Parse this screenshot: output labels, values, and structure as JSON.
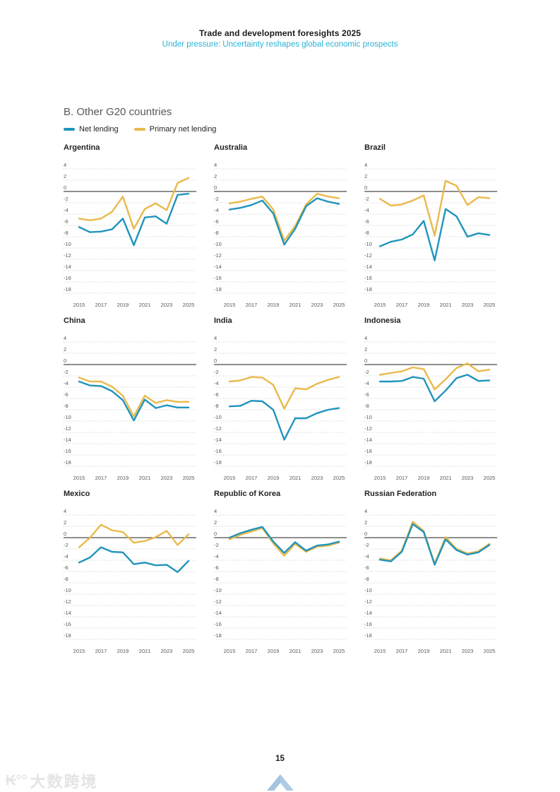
{
  "header": {
    "title": "Trade and development foresights 2025",
    "subtitle": "Under pressure: Uncertainty reshapes global economic prospects"
  },
  "section": {
    "title": "B. Other G20 countries"
  },
  "legend": {
    "items": [
      {
        "label": "Net lending",
        "color": "#2094bc"
      },
      {
        "label": "Primary net lending",
        "color": "#e9b94b"
      }
    ]
  },
  "colors": {
    "net_lending": "#2094bc",
    "primary_net_lending": "#e9b94b",
    "subtitle_cyan": "#2ab3d6",
    "gridline": "#c9c9c9",
    "zero_line": "#4a4a4a",
    "tick_label": "#58595b",
    "chevron_blue": "#aecbe4"
  },
  "chart_data": [
    {
      "type": "line",
      "title": "Argentina",
      "x": [
        2015,
        2016,
        2017,
        2018,
        2019,
        2020,
        2021,
        2022,
        2023,
        2024,
        2025
      ],
      "xticks": [
        2015,
        2017,
        2019,
        2021,
        2023,
        2025
      ],
      "yticks": [
        4,
        2,
        0,
        -2,
        -4,
        -6,
        -8,
        -10,
        -12,
        -14,
        -16,
        -18
      ],
      "ylim": [
        -18,
        4
      ],
      "grid": true,
      "series": [
        {
          "name": "Net lending",
          "color": "#2094bc",
          "values": [
            -6.3,
            -7.2,
            -7.1,
            -6.7,
            -4.8,
            -9.5,
            -4.6,
            -4.4,
            -5.7,
            -0.6,
            -0.4
          ]
        },
        {
          "name": "Primary net lending",
          "color": "#e9b94b",
          "values": [
            -4.8,
            -5.1,
            -4.8,
            -3.6,
            -0.9,
            -6.6,
            -3.1,
            -2.1,
            -3.3,
            1.5,
            2.4
          ]
        }
      ]
    },
    {
      "type": "line",
      "title": "Australia",
      "x": [
        2015,
        2016,
        2017,
        2018,
        2019,
        2020,
        2021,
        2022,
        2023,
        2024,
        2025
      ],
      "xticks": [
        2015,
        2017,
        2019,
        2021,
        2023,
        2025
      ],
      "yticks": [
        4,
        2,
        0,
        -2,
        -4,
        -6,
        -8,
        -10,
        -12,
        -14,
        -16,
        -18
      ],
      "ylim": [
        -18,
        4
      ],
      "grid": true,
      "series": [
        {
          "name": "Net lending",
          "color": "#2094bc",
          "values": [
            -3.2,
            -2.9,
            -2.4,
            -1.6,
            -3.9,
            -9.4,
            -6.6,
            -2.6,
            -1.2,
            -1.8,
            -2.2
          ]
        },
        {
          "name": "Primary net lending",
          "color": "#e9b94b",
          "values": [
            -2.1,
            -1.8,
            -1.3,
            -0.9,
            -3.2,
            -8.7,
            -6.1,
            -2.3,
            -0.4,
            -0.9,
            -1.2
          ]
        }
      ]
    },
    {
      "type": "line",
      "title": "Brazil",
      "x": [
        2015,
        2016,
        2017,
        2018,
        2019,
        2020,
        2021,
        2022,
        2023,
        2024,
        2025
      ],
      "xticks": [
        2015,
        2017,
        2019,
        2021,
        2023,
        2025
      ],
      "yticks": [
        4,
        2,
        0,
        -2,
        -4,
        -6,
        -8,
        -10,
        -12,
        -14,
        -16,
        -18
      ],
      "ylim": [
        -18,
        4
      ],
      "grid": true,
      "series": [
        {
          "name": "Net lending",
          "color": "#2094bc",
          "values": [
            -9.7,
            -8.9,
            -8.5,
            -7.6,
            -5.2,
            -12.2,
            -3.1,
            -4.4,
            -8.0,
            -7.4,
            -7.7
          ]
        },
        {
          "name": "Primary net lending",
          "color": "#e9b94b",
          "values": [
            -1.3,
            -2.5,
            -2.3,
            -1.6,
            -0.7,
            -7.8,
            1.9,
            1.0,
            -2.4,
            -1.0,
            -1.2
          ]
        }
      ]
    },
    {
      "type": "line",
      "title": "China",
      "x": [
        2015,
        2016,
        2017,
        2018,
        2019,
        2020,
        2021,
        2022,
        2023,
        2024,
        2025
      ],
      "xticks": [
        2015,
        2017,
        2019,
        2021,
        2023,
        2025
      ],
      "yticks": [
        4,
        2,
        0,
        -2,
        -4,
        -6,
        -8,
        -10,
        -12,
        -14,
        -16,
        -18
      ],
      "ylim": [
        -18,
        4
      ],
      "grid": true,
      "series": [
        {
          "name": "Net lending",
          "color": "#2094bc",
          "values": [
            -3.0,
            -3.7,
            -3.8,
            -4.7,
            -6.3,
            -9.9,
            -6.2,
            -7.7,
            -7.2,
            -7.6,
            -7.6
          ]
        },
        {
          "name": "Primary net lending",
          "color": "#e9b94b",
          "values": [
            -2.3,
            -3.0,
            -3.0,
            -3.9,
            -5.5,
            -9.2,
            -5.5,
            -6.8,
            -6.3,
            -6.6,
            -6.6
          ]
        }
      ]
    },
    {
      "type": "line",
      "title": "India",
      "x": [
        2015,
        2016,
        2017,
        2018,
        2019,
        2020,
        2021,
        2022,
        2023,
        2024,
        2025
      ],
      "xticks": [
        2015,
        2017,
        2019,
        2021,
        2023,
        2025
      ],
      "yticks": [
        4,
        2,
        0,
        -2,
        -4,
        -6,
        -8,
        -10,
        -12,
        -14,
        -16,
        -18
      ],
      "ylim": [
        -18,
        4
      ],
      "grid": true,
      "series": [
        {
          "name": "Net lending",
          "color": "#2094bc",
          "values": [
            -7.4,
            -7.3,
            -6.4,
            -6.5,
            -8.0,
            -13.3,
            -9.5,
            -9.5,
            -8.6,
            -8.0,
            -7.7
          ]
        },
        {
          "name": "Primary net lending",
          "color": "#e9b94b",
          "values": [
            -3.0,
            -2.8,
            -2.2,
            -2.3,
            -3.6,
            -7.8,
            -4.2,
            -4.4,
            -3.4,
            -2.7,
            -2.2
          ]
        }
      ]
    },
    {
      "type": "line",
      "title": "Indonesia",
      "x": [
        2015,
        2016,
        2017,
        2018,
        2019,
        2020,
        2021,
        2022,
        2023,
        2024,
        2025
      ],
      "xticks": [
        2015,
        2017,
        2019,
        2021,
        2023,
        2025
      ],
      "yticks": [
        4,
        2,
        0,
        -2,
        -4,
        -6,
        -8,
        -10,
        -12,
        -14,
        -16,
        -18
      ],
      "ylim": [
        -18,
        4
      ],
      "grid": true,
      "series": [
        {
          "name": "Net lending",
          "color": "#2094bc",
          "values": [
            -3.0,
            -3.0,
            -2.9,
            -2.2,
            -2.5,
            -6.5,
            -4.6,
            -2.4,
            -1.8,
            -2.9,
            -2.8
          ]
        },
        {
          "name": "Primary net lending",
          "color": "#e9b94b",
          "values": [
            -1.8,
            -1.5,
            -1.2,
            -0.5,
            -0.8,
            -4.4,
            -2.6,
            -0.6,
            0.2,
            -1.2,
            -0.9
          ]
        }
      ]
    },
    {
      "type": "line",
      "title": "Mexico",
      "x": [
        2015,
        2016,
        2017,
        2018,
        2019,
        2020,
        2021,
        2022,
        2023,
        2024,
        2025
      ],
      "xticks": [
        2015,
        2017,
        2019,
        2021,
        2023,
        2025
      ],
      "yticks": [
        4,
        2,
        0,
        -2,
        -4,
        -6,
        -8,
        -10,
        -12,
        -14,
        -16,
        -18
      ],
      "ylim": [
        -18,
        4
      ],
      "grid": true,
      "series": [
        {
          "name": "Net lending",
          "color": "#2094bc",
          "values": [
            -4.4,
            -3.5,
            -1.7,
            -2.5,
            -2.6,
            -4.7,
            -4.4,
            -4.9,
            -4.8,
            -6.1,
            -4.1
          ]
        },
        {
          "name": "Primary net lending",
          "color": "#e9b94b",
          "values": [
            -1.7,
            0.0,
            2.3,
            1.3,
            1.0,
            -0.9,
            -0.6,
            0.1,
            1.2,
            -1.3,
            0.6
          ]
        }
      ]
    },
    {
      "type": "line",
      "title": "Republic of Korea",
      "x": [
        2015,
        2016,
        2017,
        2018,
        2019,
        2020,
        2021,
        2022,
        2023,
        2024,
        2025
      ],
      "xticks": [
        2015,
        2017,
        2019,
        2021,
        2023,
        2025
      ],
      "yticks": [
        4,
        2,
        0,
        -2,
        -4,
        -6,
        -8,
        -10,
        -12,
        -14,
        -16,
        -18
      ],
      "ylim": [
        -18,
        4
      ],
      "grid": true,
      "series": [
        {
          "name": "Net lending",
          "color": "#2094bc",
          "values": [
            0.0,
            0.8,
            1.4,
            1.9,
            -0.7,
            -2.7,
            -0.8,
            -2.3,
            -1.4,
            -1.2,
            -0.7
          ]
        },
        {
          "name": "Primary net lending",
          "color": "#e9b94b",
          "values": [
            -0.3,
            0.5,
            1.1,
            1.7,
            -1.0,
            -3.2,
            -1.1,
            -2.5,
            -1.6,
            -1.4,
            -0.9
          ]
        }
      ]
    },
    {
      "type": "line",
      "title": "Russian Federation",
      "x": [
        2015,
        2016,
        2017,
        2018,
        2019,
        2020,
        2021,
        2022,
        2023,
        2024,
        2025
      ],
      "xticks": [
        2015,
        2017,
        2019,
        2021,
        2023,
        2025
      ],
      "yticks": [
        4,
        2,
        0,
        -2,
        -4,
        -6,
        -8,
        -10,
        -12,
        -14,
        -16,
        -18
      ],
      "ylim": [
        -18,
        4
      ],
      "grid": true,
      "series": [
        {
          "name": "Net lending",
          "color": "#2094bc",
          "values": [
            -3.9,
            -4.2,
            -2.5,
            2.4,
            1.0,
            -4.8,
            -0.3,
            -2.2,
            -3.0,
            -2.6,
            -1.3
          ]
        },
        {
          "name": "Primary net lending",
          "color": "#e9b94b",
          "values": [
            -3.7,
            -4.0,
            -2.3,
            2.8,
            1.2,
            -4.6,
            0.1,
            -2.0,
            -2.8,
            -2.4,
            -1.1
          ]
        }
      ]
    }
  ],
  "footer": {
    "page_number": "15",
    "watermark": "大数跨境",
    "watermark_glyph": "₭°°"
  }
}
